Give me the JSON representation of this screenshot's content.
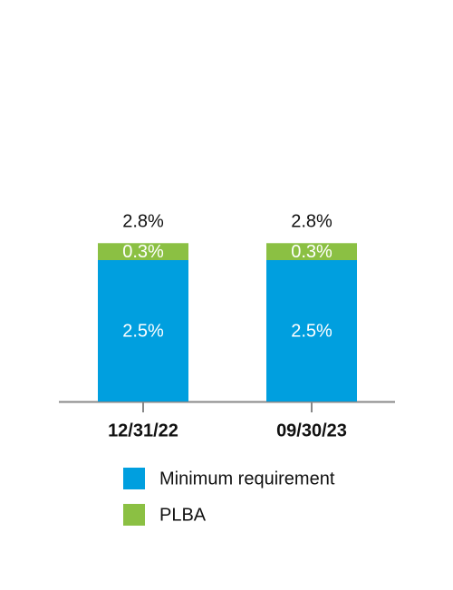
{
  "chart_data": {
    "type": "stacked_bar",
    "categories": [
      "12/31/22",
      "09/30/23"
    ],
    "series": [
      {
        "name": "Minimum requirement",
        "color": "#009fdf",
        "values": [
          2.5,
          2.5
        ],
        "value_labels": [
          "2.5%",
          "2.5%"
        ]
      },
      {
        "name": "PLBA",
        "color": "#8bc043",
        "values": [
          0.3,
          0.3
        ],
        "value_labels": [
          "0.3%",
          "0.3%"
        ]
      }
    ],
    "totals": [
      2.8,
      2.8
    ],
    "total_labels": [
      "2.8%",
      "2.8%"
    ]
  }
}
